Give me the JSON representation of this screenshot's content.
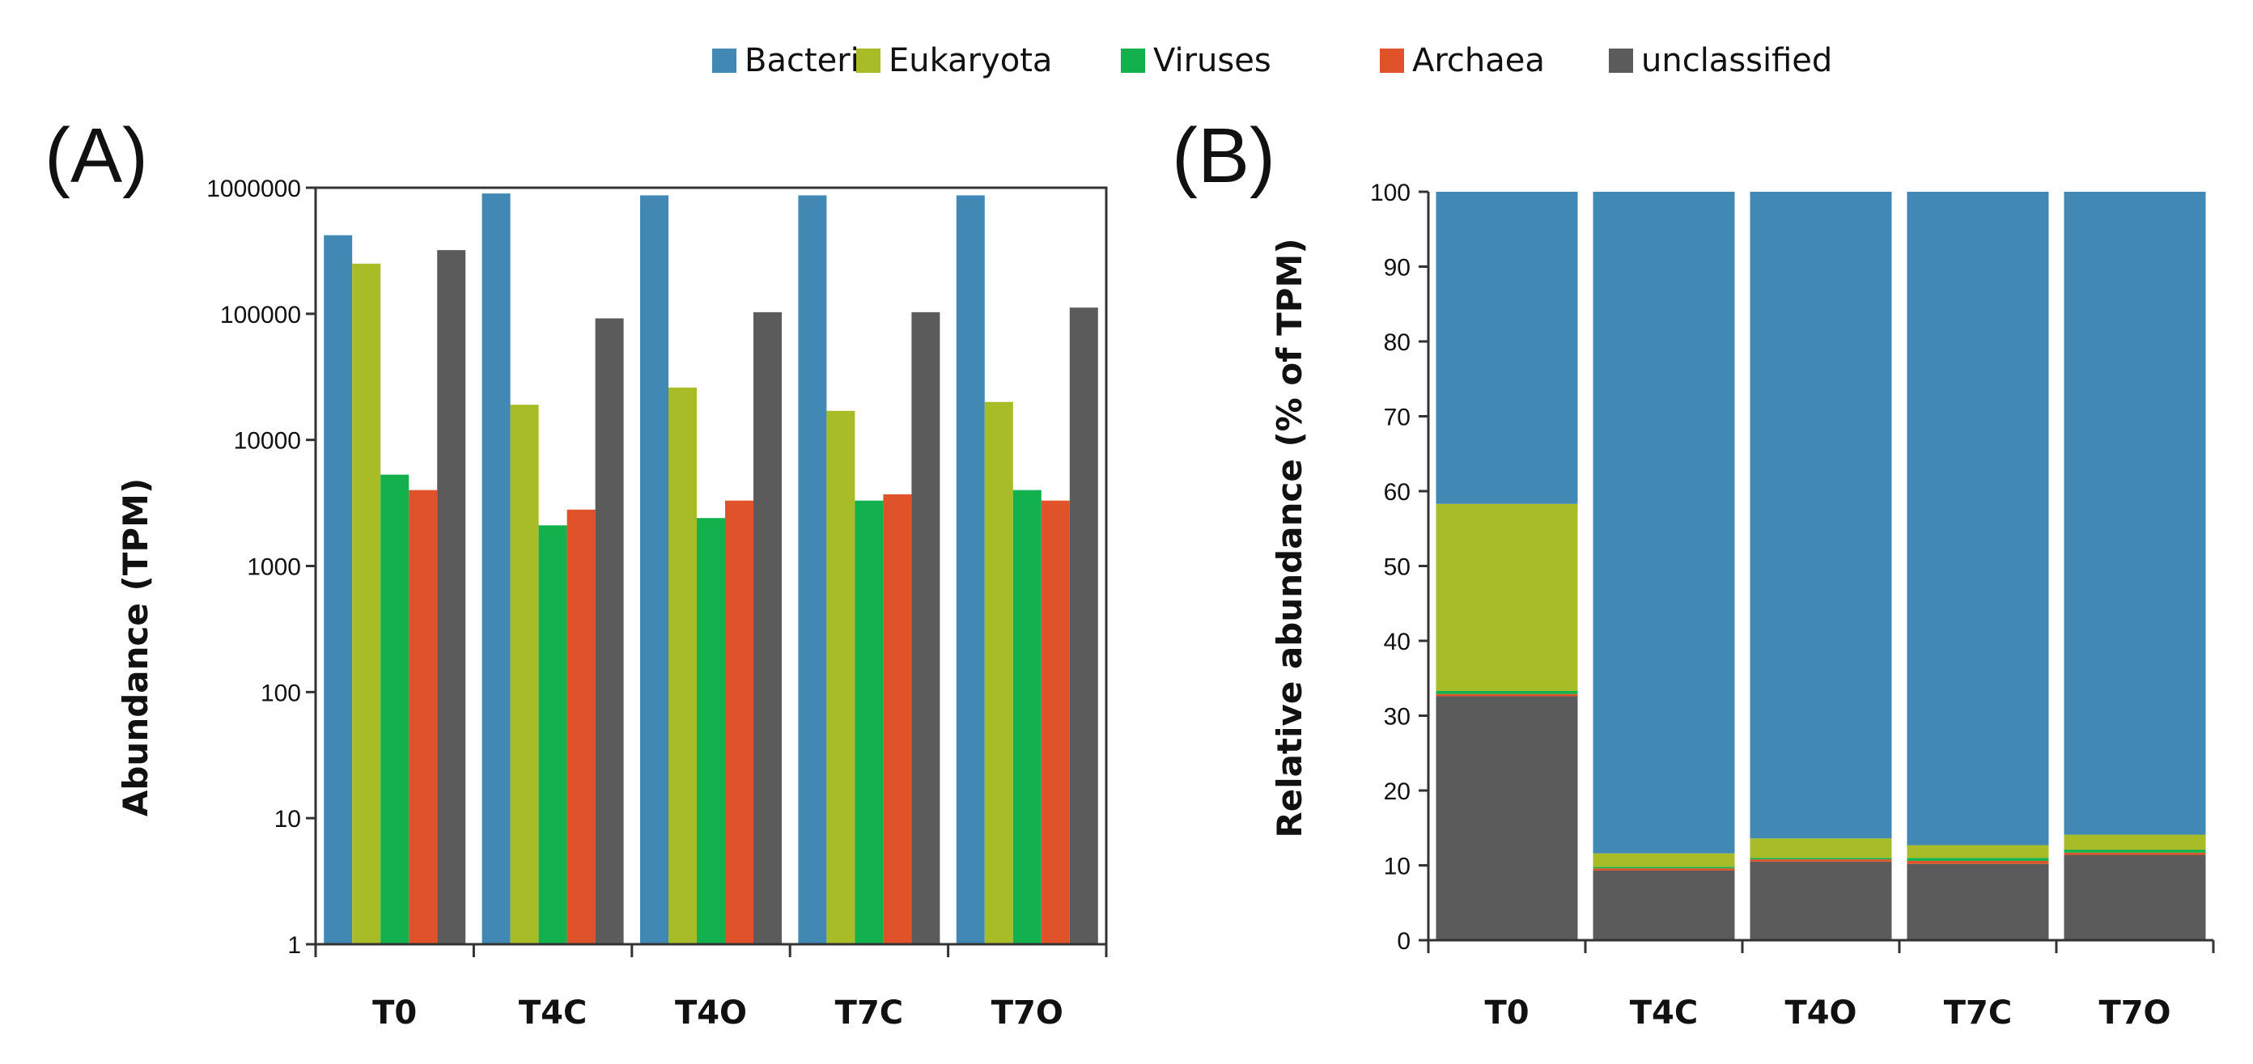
{
  "colors": {
    "Bacteria": "#4189b4",
    "Eukaryota": "#a8bc27",
    "Viruses": "#12b14e",
    "Archaea": "#e0532a",
    "unclassified": "#5b5b5b"
  },
  "legend": [
    "Bacteria",
    "Eukaryota",
    "Viruses",
    "Archaea",
    "unclassified"
  ],
  "chart_data": [
    {
      "panel": "(A)",
      "type": "bar",
      "scale": "log",
      "categories": [
        "T0",
        "T4C",
        "T4O",
        "T7C",
        "T7O"
      ],
      "series": [
        {
          "name": "Bacteria",
          "values": [
            420000,
            900000,
            870000,
            870000,
            870000
          ]
        },
        {
          "name": "Eukaryota",
          "values": [
            250000,
            19000,
            26000,
            17000,
            20000
          ]
        },
        {
          "name": "Viruses",
          "values": [
            5300,
            2100,
            2400,
            3300,
            4000
          ]
        },
        {
          "name": "Archaea",
          "values": [
            4000,
            2800,
            3300,
            3700,
            3300
          ]
        },
        {
          "name": "unclassified",
          "values": [
            320000,
            92000,
            103000,
            103000,
            112000
          ]
        }
      ],
      "ylabel": "Abundance (TPM)",
      "xlabel": "",
      "ylim": [
        1,
        1000000
      ],
      "yticks": [
        "1",
        "10",
        "100",
        "1000",
        "10000",
        "100000",
        "1000000"
      ]
    },
    {
      "panel": "(B)",
      "type": "bar",
      "stacked": true,
      "categories": [
        "T0",
        "T4C",
        "T4O",
        "T7C",
        "T7O"
      ],
      "series": [
        {
          "name": "unclassified",
          "values": [
            32.6,
            9.3,
            10.5,
            10.2,
            11.4
          ]
        },
        {
          "name": "Archaea",
          "values": [
            0.3,
            0.3,
            0.3,
            0.4,
            0.3
          ]
        },
        {
          "name": "Viruses",
          "values": [
            0.4,
            0.2,
            0.2,
            0.4,
            0.4
          ]
        },
        {
          "name": "Eukaryota",
          "values": [
            25.0,
            1.8,
            2.6,
            1.7,
            2.0
          ]
        },
        {
          "name": "Bacteria",
          "values": [
            41.7,
            88.4,
            86.4,
            87.3,
            85.9
          ]
        }
      ],
      "ylabel": "Relative abundance (% of TPM)",
      "xlabel": "",
      "ylim": [
        0,
        100
      ],
      "yticks": [
        "0",
        "10",
        "20",
        "30",
        "40",
        "50",
        "60",
        "70",
        "80",
        "90",
        "100"
      ]
    }
  ]
}
